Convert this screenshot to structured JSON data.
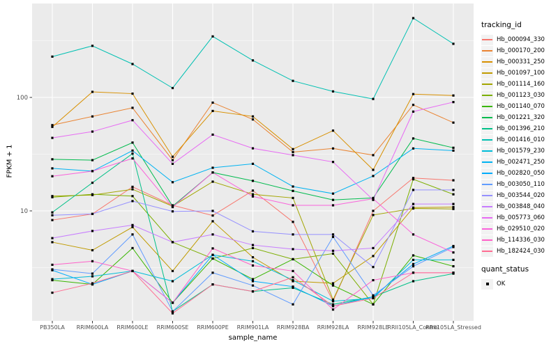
{
  "figure": {
    "background": "#ffffff",
    "panel_background": "#ebebeb",
    "gridline_color": "#ffffff",
    "tick_color": "#333333",
    "tick_label_color": "#4d4d4d",
    "point_color": "#000000"
  },
  "chart_data": {
    "type": "line",
    "title": "",
    "xlabel": "sample_name",
    "ylabel": "FPKM + 1",
    "y_scale": "log10",
    "ylim": [
      1.05,
      670
    ],
    "y_major_ticks": [
      100,
      10
    ],
    "y_minor_gridlines": [
      316,
      31.6,
      3.16
    ],
    "grid": "on",
    "legend_position": "right",
    "point_marker": "filled-square",
    "categories": [
      "PB350LA",
      "RRIM600LA",
      "RRIM600LE",
      "RRIM600SE",
      "RRIM600PE",
      "RRIM901LA",
      "RRIM928BA",
      "RRIM928LA",
      "RRIM928LE",
      "RRII105LA_Control",
      "RRII105LA_Stressed"
    ],
    "series": [
      {
        "name": "Hb_000094_330",
        "color": "#F8766D",
        "values": [
          8.3,
          9.4,
          16.3,
          11.2,
          9.1,
          15.1,
          8.0,
          1.6,
          10.0,
          19.5,
          18.6
        ]
      },
      {
        "name": "Hb_000170_200",
        "color": "#EA8331",
        "values": [
          57,
          68,
          81,
          28,
          90,
          64,
          33,
          35.5,
          31,
          86,
          60
        ]
      },
      {
        "name": "Hb_000331_250",
        "color": "#D89000",
        "values": [
          55,
          112,
          108,
          30,
          76,
          68,
          35,
          51,
          23,
          107,
          104
        ]
      },
      {
        "name": "Hb_001097_100",
        "color": "#C09B00",
        "values": [
          5.3,
          4.5,
          7.2,
          2.95,
          8.1,
          3.9,
          2.4,
          2.3,
          4.0,
          10.7,
          10.8
        ]
      },
      {
        "name": "Hb_001114_160",
        "color": "#A3A500",
        "values": [
          13.5,
          13.8,
          15.5,
          11.0,
          18.1,
          14.0,
          13.0,
          1.65,
          9.2,
          10.5,
          10.4
        ]
      },
      {
        "name": "Hb_001123_030",
        "color": "#7CAE00",
        "values": [
          13.2,
          14.0,
          13.5,
          5.3,
          3.8,
          4.7,
          3.75,
          4.2,
          1.5,
          19.0,
          14.0
        ]
      },
      {
        "name": "Hb_001140_070",
        "color": "#39B600",
        "values": [
          2.45,
          2.25,
          4.7,
          1.55,
          3.8,
          2.5,
          3.75,
          2.2,
          1.5,
          4.05,
          3.25
        ]
      },
      {
        "name": "Hb_001221_320",
        "color": "#00BB4E",
        "values": [
          28.5,
          28,
          40,
          11,
          21.8,
          18.4,
          15.0,
          12.5,
          13.0,
          43.5,
          36
        ]
      },
      {
        "name": "Hb_001396_210",
        "color": "#00C087",
        "values": [
          9.7,
          17.7,
          32,
          1.3,
          2.25,
          1.95,
          2.1,
          1.5,
          1.75,
          2.4,
          2.8
        ]
      },
      {
        "name": "Hb_001416_010",
        "color": "#00C0B2",
        "values": [
          229,
          285,
          197,
          121,
          345,
          212,
          140,
          113,
          97,
          500,
          297
        ]
      },
      {
        "name": "Hb_001579_230",
        "color": "#00BCD8",
        "values": [
          2.5,
          2.65,
          2.95,
          2.4,
          4.1,
          3.6,
          2.45,
          1.6,
          1.7,
          3.7,
          3.7
        ]
      },
      {
        "name": "Hb_002471_250",
        "color": "#00B3F2",
        "values": [
          23.7,
          22.4,
          34,
          17.9,
          24,
          26,
          16.4,
          14.2,
          20.3,
          35.5,
          34
        ]
      },
      {
        "name": "Hb_002820_050",
        "color": "#00ACFC",
        "values": [
          3.0,
          2.25,
          2.95,
          1.55,
          4.1,
          2.4,
          2.15,
          1.45,
          1.75,
          3.4,
          4.9
        ]
      },
      {
        "name": "Hb_003050_110",
        "color": "#619CFF",
        "values": [
          3.05,
          2.8,
          6.2,
          1.3,
          2.85,
          2.2,
          1.5,
          5.9,
          1.8,
          3.25,
          4.8
        ]
      },
      {
        "name": "Hb_003544_020",
        "color": "#9590FF",
        "values": [
          9.15,
          9.4,
          12.2,
          9.9,
          10.0,
          6.6,
          6.2,
          6.2,
          3.2,
          15.3,
          15.3
        ]
      },
      {
        "name": "Hb_003848_040",
        "color": "#C77CFF",
        "values": [
          5.75,
          6.65,
          7.5,
          5.3,
          6.2,
          5.0,
          4.6,
          4.45,
          4.7,
          11.5,
          11.5
        ]
      },
      {
        "name": "Hb_005773_060",
        "color": "#E76BF3",
        "values": [
          44,
          50,
          63,
          26,
          47,
          35.6,
          31,
          27,
          12.5,
          75,
          91
        ]
      },
      {
        "name": "Hb_029510_020",
        "color": "#FA62DB",
        "values": [
          20.2,
          22.4,
          29,
          10.8,
          21.8,
          13.4,
          11.2,
          11.2,
          12.8,
          6.2,
          4.3
        ]
      },
      {
        "name": "Hb_114336_030",
        "color": "#FF61C9",
        "values": [
          3.35,
          3.6,
          2.95,
          1.55,
          4.67,
          3.3,
          2.95,
          1.35,
          2.45,
          2.85,
          2.85
        ]
      },
      {
        "name": "Hb_182424_030",
        "color": "#FF6C92",
        "values": [
          1.9,
          2.3,
          2.95,
          1.25,
          2.25,
          1.95,
          2.6,
          1.45,
          1.7,
          2.85,
          2.85
        ]
      }
    ]
  },
  "legend": {
    "tracking_title": "tracking_id",
    "quant_title": "quant_status",
    "quant_items": [
      {
        "label": "OK"
      }
    ]
  }
}
